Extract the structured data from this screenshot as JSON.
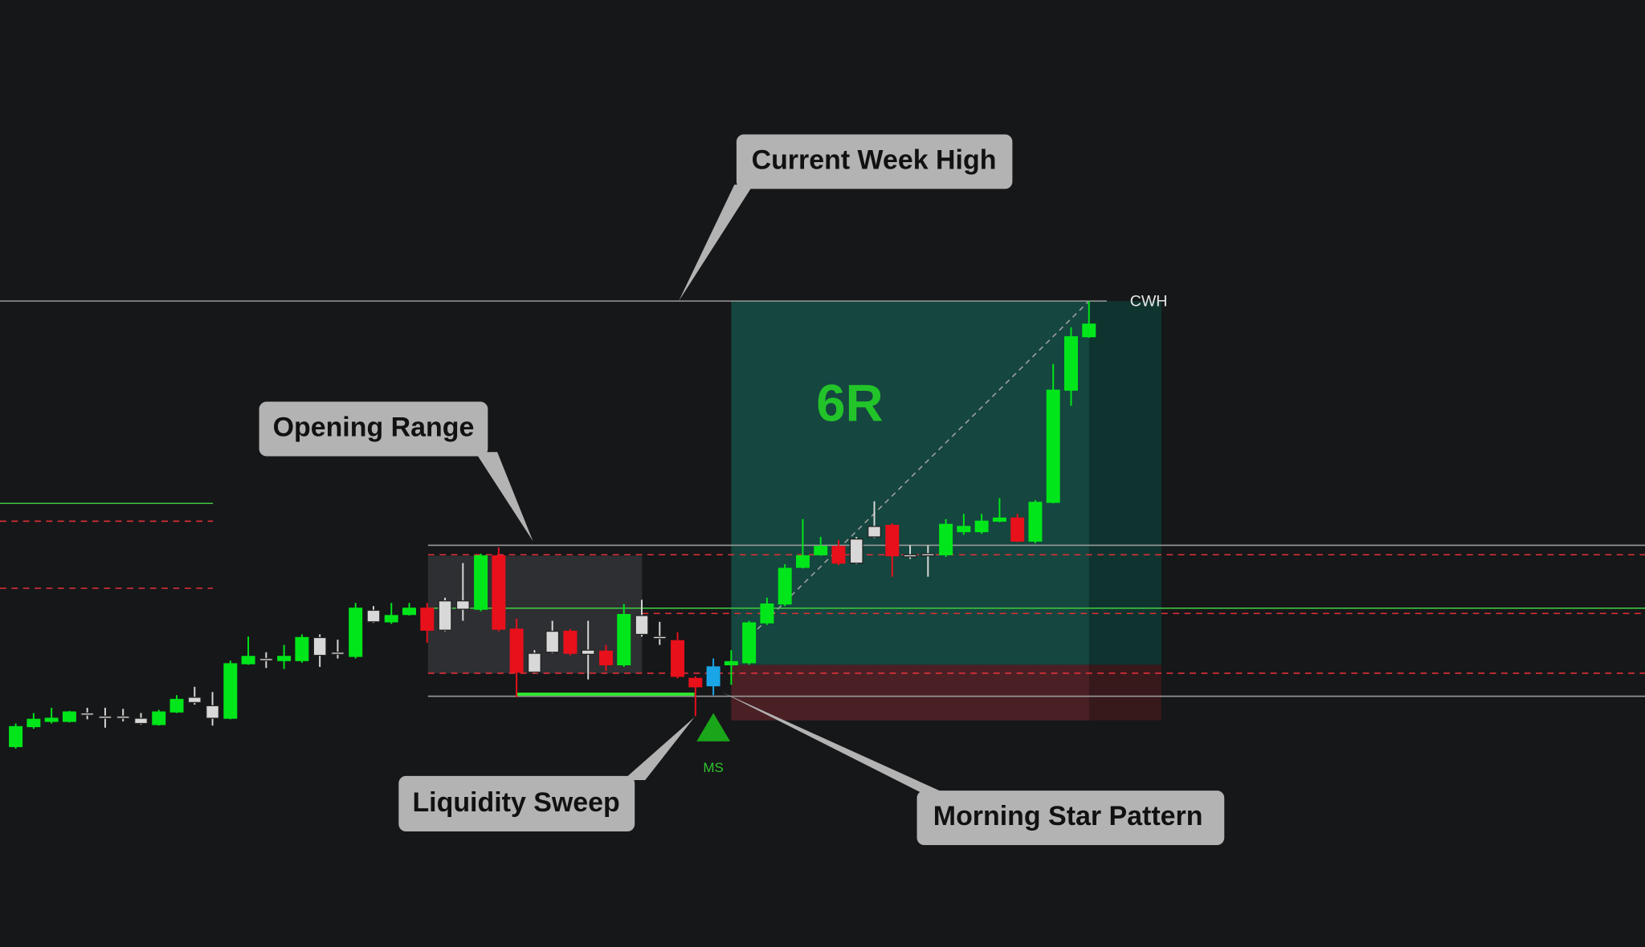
{
  "chart_data": {
    "type": "candlestick",
    "ylim": [
      0,
      903
    ],
    "open": [
      191,
      210,
      215,
      215,
      223,
      220,
      220,
      218,
      212,
      224,
      233,
      218,
      218,
      270,
      275,
      273,
      273,
      278,
      281,
      277,
      310,
      310,
      317,
      323,
      302,
      322,
      322,
      373,
      303,
      262,
      281,
      301,
      283,
      282,
      269,
      298,
      296,
      292,
      256,
      249,
      269,
      271,
      309,
      327,
      362,
      374,
      382,
      366,
      391,
      402,
      374,
      375,
      374,
      396,
      396,
      406,
      409,
      387,
      424,
      531,
      582
    ],
    "high": [
      213,
      223,
      228,
      225,
      228,
      228,
      227,
      223,
      226,
      240,
      248,
      243,
      273,
      296,
      281,
      288,
      298,
      298,
      293,
      328,
      325,
      328,
      328,
      328,
      333,
      366,
      375,
      381,
      313,
      283,
      311,
      303,
      311,
      288,
      327,
      331,
      310,
      300,
      258,
      275,
      283,
      311,
      333,
      365,
      408,
      391,
      388,
      391,
      425,
      404,
      383,
      383,
      408,
      413,
      413,
      428,
      413,
      426,
      556,
      591,
      616
    ],
    "low": [
      189,
      208,
      213,
      214,
      217,
      209,
      215,
      212,
      211,
      223,
      231,
      211,
      217,
      269,
      266,
      265,
      271,
      267,
      275,
      275,
      309,
      308,
      316,
      290,
      301,
      311,
      320,
      301,
      238,
      261,
      280,
      278,
      255,
      263,
      267,
      296,
      288,
      256,
      220,
      240,
      250,
      269,
      307,
      325,
      361,
      373,
      364,
      365,
      390,
      353,
      370,
      353,
      372,
      393,
      394,
      405,
      386,
      385,
      423,
      516,
      581
    ],
    "close": [
      210,
      217,
      218,
      224,
      221,
      220,
      219,
      213,
      224,
      236,
      238,
      230,
      270,
      277,
      275,
      277,
      295,
      295,
      281,
      323,
      321,
      316,
      323,
      302,
      330,
      330,
      373,
      303,
      262,
      280,
      301,
      280,
      279,
      269,
      317,
      316,
      296,
      258,
      248,
      267,
      272,
      309,
      327,
      361,
      373,
      382,
      366,
      389,
      401,
      373,
      374,
      375,
      403,
      401,
      406,
      409,
      387,
      424,
      531,
      582,
      594
    ],
    "colors": [
      "#00e61a",
      "#00e61a",
      "#00e61a",
      "#00e61a",
      "#d8d8d8",
      "#d8d8d8",
      "#d8d8d8",
      "#d8d8d8",
      "#00e61a",
      "#00e61a",
      "#d8d8d8",
      "#d8d8d8",
      "#00e61a",
      "#00e61a",
      "#d8d8d8",
      "#00e61a",
      "#00e61a",
      "#d8d8d8",
      "#d8d8d8",
      "#00e61a",
      "#d8d8d8",
      "#00e61a",
      "#00e61a",
      "#e8101a",
      "#d8d8d8",
      "#d8d8d8",
      "#00e61a",
      "#e8101a",
      "#e8101a",
      "#d8d8d8",
      "#d8d8d8",
      "#e8101a",
      "#d8d8d8",
      "#e8101a",
      "#00e61a",
      "#d8d8d8",
      "#d8d8d8",
      "#e8101a",
      "#e8101a",
      "#1aa6e6",
      "#00e61a",
      "#00e61a",
      "#00e61a",
      "#00e61a",
      "#00e61a",
      "#00e61a",
      "#e8101a",
      "#d8d8d8",
      "#d8d8d8",
      "#e8101a",
      "#d8d8d8",
      "#d8d8d8",
      "#00e61a",
      "#00e61a",
      "#00e61a",
      "#00e61a",
      "#e8101a",
      "#00e61a",
      "#00e61a",
      "#00e61a",
      "#00e61a"
    ],
    "levels": [
      {
        "value": 616,
        "color": "#9a9a9a",
        "dash": false
      },
      {
        "value": 383,
        "color": "#9a9a9a",
        "dash": false
      },
      {
        "value": 374,
        "color": "#e0303a",
        "dash": true
      },
      {
        "value": 323,
        "color": "#3ec43e",
        "dash": false
      },
      {
        "value": 318,
        "color": "#e0303a",
        "dash": true
      },
      {
        "value": 261,
        "color": "#e0303a",
        "dash": true
      },
      {
        "value": 239,
        "color": "#9a9a9a",
        "dash": false
      },
      {
        "value": 423,
        "color": "#3ec43e",
        "dash": false
      },
      {
        "value": 406,
        "color": "#e0303a",
        "dash": true
      },
      {
        "value": 342,
        "color": "#e0303a",
        "dash": true
      },
      {
        "value": 241,
        "color": "#2ee62e",
        "dash": false
      }
    ],
    "zones": [
      {
        "low": 261,
        "high": 373,
        "color": "#2e2f33"
      },
      {
        "low": 269,
        "high": 616,
        "color": "#15463f"
      },
      {
        "low": 216,
        "high": 269,
        "color": "#4a2025"
      }
    ],
    "level_label": "CWH",
    "target_label": "6R",
    "signal_label": "MS",
    "annotations": [
      "Current Week High",
      "Opening Range",
      "Liquidity Sweep",
      "Morning Star Pattern"
    ]
  }
}
